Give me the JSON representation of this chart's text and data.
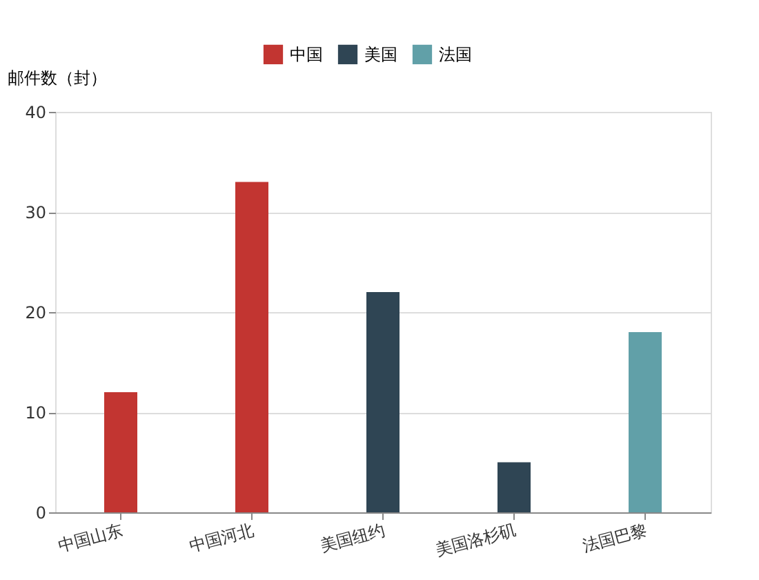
{
  "chart_data": {
    "type": "bar",
    "ylabel": "邮件数（封）",
    "categories": [
      "中国山东",
      "中国河北",
      "美国纽约",
      "美国洛杉矶",
      "法国巴黎"
    ],
    "series": [
      {
        "name": "中国",
        "color": "#c23531",
        "values": [
          12,
          33,
          null,
          null,
          null
        ]
      },
      {
        "name": "美国",
        "color": "#2f4554",
        "values": [
          null,
          null,
          22,
          5,
          null
        ]
      },
      {
        "name": "法国",
        "color": "#61a0a8",
        "values": [
          null,
          null,
          null,
          null,
          18
        ]
      }
    ],
    "ylim": [
      0,
      40
    ],
    "yticks": [
      0,
      10,
      20,
      30,
      40
    ],
    "grid": "y",
    "legend": "top"
  }
}
